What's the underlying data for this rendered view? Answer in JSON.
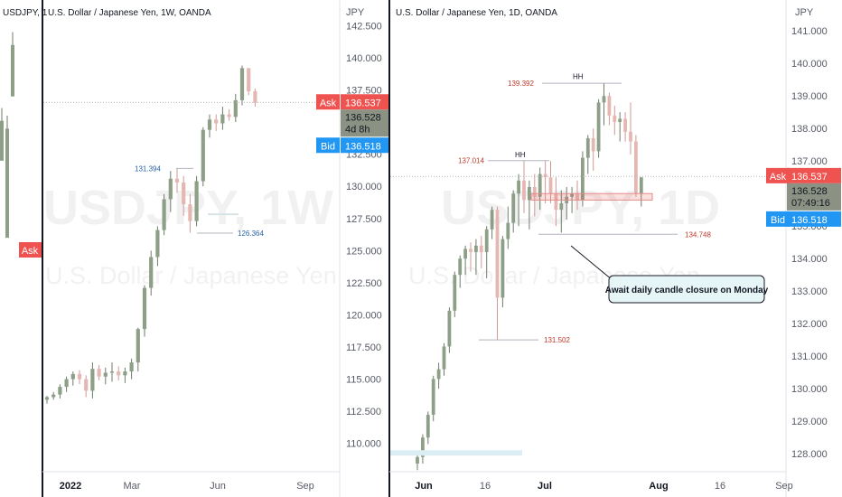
{
  "left_chart": {
    "symbol": "U.S. Dollar / Japanese Yen, 1W, OANDA",
    "left_symbol_fragment": "USDJPY, 1",
    "axis_unit": "JPY",
    "watermark": "USDJPY, 1W",
    "watermark_sub": "U.S. Dollar / Japanese Yen",
    "ask_label": "Ask",
    "ask_price": "136.537",
    "bid_label": "Bid",
    "bid_price": "136.518",
    "last_price": "136.528",
    "countdown": "4d 8h",
    "left_ask_label": "Ask",
    "annotations": [
      {
        "label": "131.394",
        "price": 131.394
      },
      {
        "label": "126.364",
        "price": 126.364
      }
    ],
    "colors": {
      "ask": "#ef5350",
      "bid": "#2196f3",
      "up": "#8d9f87",
      "down": "#e5b7b3"
    }
  },
  "right_chart": {
    "symbol": "U.S. Dollar / Japanese Yen, 1D, OANDA",
    "axis_unit": "JPY",
    "watermark": "USDJPY, 1D",
    "watermark_sub": "U.S. Dollar / Japanese Yen",
    "ask_label": "Ask",
    "ask_price": "136.537",
    "bid_label": "Bid",
    "bid_price": "136.518",
    "last_price": "136.528",
    "countdown": "07:49:16",
    "callout": "Await daily candle closure on Monday",
    "annotations": [
      {
        "label": "139.392",
        "price": 139.392
      },
      {
        "label": "137.014",
        "price": 137.014
      },
      {
        "label": "134.748",
        "price": 134.748
      },
      {
        "label": "131.502",
        "price": 131.502
      },
      {
        "label": "HH",
        "price": 139.6
      },
      {
        "label": "HH",
        "price": 137.2
      }
    ]
  },
  "chart_data": [
    {
      "type": "candlestick",
      "title": "U.S. Dollar / Japanese Yen, 1W, OANDA",
      "xlabel": "",
      "ylabel": "JPY",
      "ylim": [
        107.8,
        144.5
      ],
      "y_ticks": [
        "142.500",
        "140.000",
        "137.500",
        "135.000",
        "132.500",
        "130.000",
        "127.500",
        "125.000",
        "122.500",
        "120.000",
        "117.500",
        "115.000",
        "112.500",
        "110.000"
      ],
      "x_ticks": [
        "2022",
        "Mar",
        "Jun",
        "Sep"
      ],
      "bold_x_ticks": [
        "2022"
      ],
      "candles": [
        [
          113.4,
          113.7,
          113.1,
          113.6
        ],
        [
          113.6,
          114.0,
          113.4,
          113.8
        ],
        [
          113.8,
          114.6,
          113.5,
          114.4
        ],
        [
          114.4,
          115.2,
          114.0,
          115.0
        ],
        [
          115.0,
          115.6,
          114.5,
          115.4
        ],
        [
          115.4,
          115.7,
          114.6,
          115.0
        ],
        [
          115.0,
          115.3,
          113.6,
          114.1
        ],
        [
          114.1,
          116.3,
          113.5,
          115.8
        ],
        [
          115.8,
          116.1,
          114.9,
          115.2
        ],
        [
          115.2,
          115.9,
          114.6,
          115.5
        ],
        [
          115.5,
          116.3,
          114.8,
          115.6
        ],
        [
          115.6,
          116.0,
          114.9,
          115.3
        ],
        [
          115.3,
          115.9,
          114.7,
          115.6
        ],
        [
          115.6,
          116.6,
          115.0,
          116.3
        ],
        [
          116.3,
          119.0,
          115.6,
          118.9
        ],
        [
          118.9,
          122.3,
          118.3,
          122.1
        ],
        [
          122.1,
          125.0,
          121.5,
          124.5
        ],
        [
          124.5,
          126.9,
          123.8,
          126.6
        ],
        [
          126.6,
          129.4,
          126.2,
          129.0
        ],
        [
          129.0,
          131.2,
          128.0,
          130.6
        ],
        [
          130.6,
          131.4,
          129.5,
          130.3
        ],
        [
          130.3,
          130.8,
          127.7,
          128.6
        ],
        [
          128.6,
          129.4,
          126.4,
          127.3
        ],
        [
          127.3,
          130.8,
          126.9,
          130.4
        ],
        [
          130.4,
          134.6,
          130.0,
          134.4
        ],
        [
          134.4,
          135.6,
          133.8,
          135.2
        ],
        [
          135.2,
          135.6,
          134.3,
          134.9
        ],
        [
          134.9,
          136.2,
          134.4,
          135.6
        ],
        [
          135.6,
          136.0,
          135.1,
          135.4
        ],
        [
          135.4,
          137.2,
          135.0,
          136.7
        ],
        [
          136.7,
          139.4,
          136.3,
          139.2
        ],
        [
          139.2,
          139.2,
          137.1,
          137.4
        ],
        [
          137.4,
          137.6,
          136.2,
          136.5
        ]
      ]
    },
    {
      "type": "candlestick",
      "title": "U.S. Dollar / Japanese Yen, 1D, OANDA",
      "xlabel": "",
      "ylabel": "JPY",
      "ylim": [
        127.45,
        141.95
      ],
      "y_ticks": [
        "141.000",
        "140.000",
        "139.000",
        "138.000",
        "137.000",
        "136.000",
        "135.000",
        "134.000",
        "133.000",
        "132.000",
        "131.000",
        "130.000",
        "129.000",
        "128.000"
      ],
      "x_ticks": [
        "Jun",
        "16",
        "Jul",
        "Aug",
        "16",
        "Sep"
      ],
      "bold_x_ticks": [
        "Jun",
        "Jul",
        "Aug"
      ],
      "candles": [
        [
          127.7,
          128.0,
          127.5,
          127.9
        ],
        [
          127.9,
          128.6,
          127.7,
          128.5
        ],
        [
          128.5,
          129.3,
          128.3,
          129.2
        ],
        [
          129.2,
          130.4,
          129.0,
          130.3
        ],
        [
          130.3,
          130.8,
          130.0,
          130.6
        ],
        [
          130.6,
          131.4,
          130.4,
          131.3
        ],
        [
          131.3,
          132.5,
          131.1,
          132.4
        ],
        [
          132.4,
          133.6,
          132.2,
          133.5
        ],
        [
          133.5,
          134.1,
          133.1,
          134.0
        ],
        [
          134.0,
          134.4,
          133.5,
          134.3
        ],
        [
          134.3,
          134.5,
          133.6,
          134.2
        ],
        [
          134.2,
          134.6,
          133.5,
          134.4
        ],
        [
          134.4,
          134.7,
          133.7,
          134.2
        ],
        [
          134.2,
          135.0,
          133.4,
          134.9
        ],
        [
          134.9,
          135.6,
          134.6,
          135.5
        ],
        [
          135.5,
          135.6,
          131.5,
          132.8
        ],
        [
          132.8,
          134.7,
          132.5,
          134.6
        ],
        [
          134.6,
          135.6,
          134.3,
          135.1
        ],
        [
          135.1,
          136.1,
          134.8,
          136.0
        ],
        [
          136.0,
          136.6,
          135.0,
          136.4
        ],
        [
          136.4,
          137.0,
          135.4,
          135.8
        ],
        [
          135.8,
          136.4,
          134.9,
          136.2
        ],
        [
          136.2,
          136.6,
          135.3,
          135.9
        ],
        [
          135.9,
          136.8,
          135.5,
          136.6
        ],
        [
          136.6,
          137.0,
          135.7,
          136.5
        ],
        [
          136.5,
          137.0,
          135.7,
          136.0
        ],
        [
          136.0,
          136.5,
          135.0,
          135.5
        ],
        [
          135.5,
          136.1,
          134.8,
          135.7
        ],
        [
          135.7,
          136.2,
          135.2,
          135.9
        ],
        [
          135.9,
          136.2,
          135.4,
          136.0
        ],
        [
          136.0,
          136.4,
          135.5,
          135.8
        ],
        [
          135.8,
          137.3,
          135.6,
          137.1
        ],
        [
          137.1,
          137.8,
          136.6,
          137.7
        ],
        [
          137.7,
          138.0,
          136.7,
          137.3
        ],
        [
          137.3,
          138.9,
          137.1,
          138.8
        ],
        [
          138.8,
          139.4,
          138.1,
          139.0
        ],
        [
          139.0,
          139.1,
          138.1,
          138.4
        ],
        [
          138.4,
          138.7,
          137.8,
          138.2
        ],
        [
          138.2,
          138.5,
          137.6,
          138.3
        ],
        [
          138.3,
          138.5,
          137.6,
          137.9
        ],
        [
          137.9,
          138.8,
          137.2,
          137.6
        ],
        [
          137.6,
          137.8,
          135.9,
          136.0
        ],
        [
          136.0,
          136.5,
          135.6,
          136.5
        ]
      ]
    }
  ]
}
